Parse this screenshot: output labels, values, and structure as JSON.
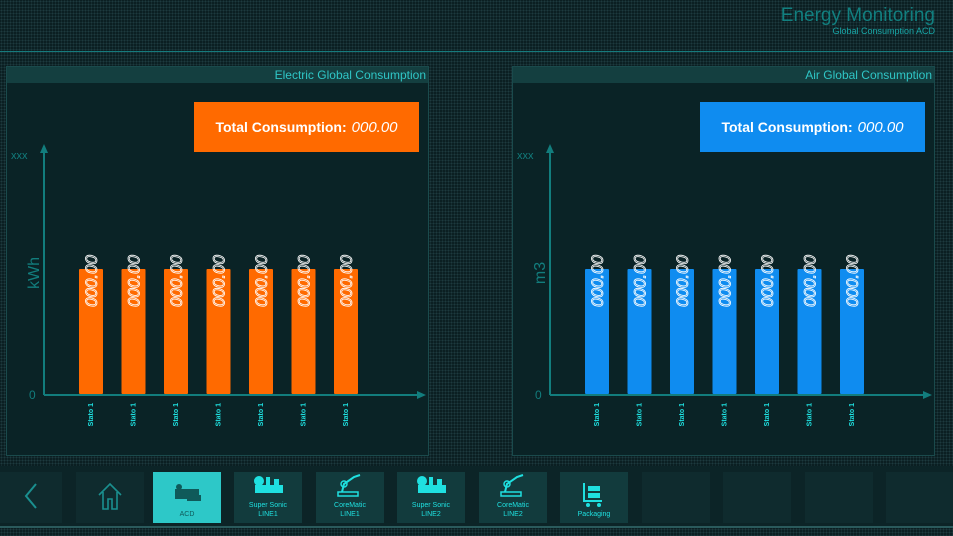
{
  "header": {
    "title": "Energy Monitoring",
    "subtitle": "Global Consumption ACD"
  },
  "panels": [
    {
      "title": "Electric Global Consumption",
      "total_label": "Total Consumption:",
      "total_value": "000.00",
      "accent": "#ff6a00",
      "chart_data": {
        "type": "bar",
        "ylabel": "kWh",
        "y_top_label": "xxx",
        "y_zero_label": "0",
        "categories": [
          "Stato 1",
          "Stato 1",
          "Stato 1",
          "Stato 1",
          "Stato 1",
          "Stato 1",
          "Stato 1"
        ],
        "value_labels": [
          "000.00",
          "000.00",
          "000.00",
          "000.00",
          "000.00",
          "000.00",
          "000.00"
        ],
        "levels": [
          0.51,
          0.51,
          0.51,
          0.51,
          0.51,
          0.51,
          0.51
        ]
      }
    },
    {
      "title": "Air Global Consumption",
      "total_label": "Total Consumption:",
      "total_value": "000.00",
      "accent": "#0f8cf0",
      "chart_data": {
        "type": "bar",
        "ylabel": "m3",
        "y_top_label": "xxx",
        "y_zero_label": "0",
        "categories": [
          "Stato 1",
          "Stato 1",
          "Stato 1",
          "Stato 1",
          "Stato 1",
          "Stato 1",
          "Stato 1"
        ],
        "value_labels": [
          "000.00",
          "000.00",
          "000.00",
          "000.00",
          "000.00",
          "000.00",
          "000.00"
        ],
        "levels": [
          0.51,
          0.51,
          0.51,
          0.51,
          0.51,
          0.51,
          0.51
        ]
      }
    }
  ],
  "nav": {
    "items": [
      {
        "icon": "acd-icon",
        "line1": "ACD",
        "line2": "",
        "active": true
      },
      {
        "icon": "machine-icon",
        "line1": "Super Sonic",
        "line2": "LINE1"
      },
      {
        "icon": "robot-arm-icon",
        "line1": "CoreMatic",
        "line2": "LINE1"
      },
      {
        "icon": "machine-icon",
        "line1": "Super Sonic",
        "line2": "LINE2"
      },
      {
        "icon": "robot-arm-icon",
        "line1": "CoreMatic",
        "line2": "LINE2"
      },
      {
        "icon": "cart-icon",
        "line1": "Packaging",
        "line2": ""
      }
    ]
  }
}
